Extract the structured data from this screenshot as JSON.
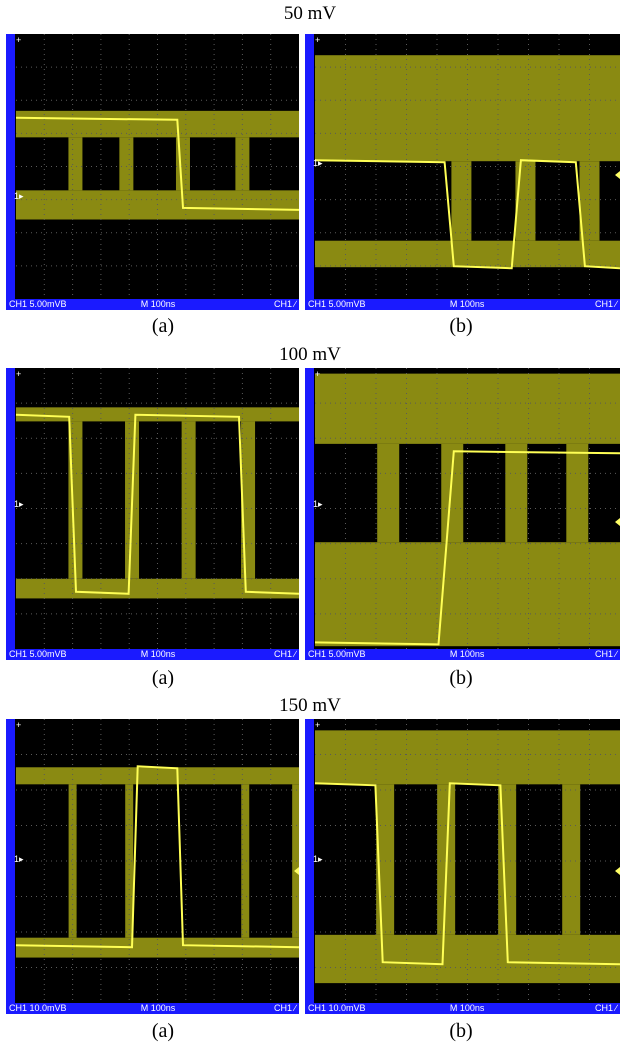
{
  "rows": [
    {
      "title": "50 mV",
      "panels": [
        {
          "caption": "(a)",
          "status": {
            "channel": "CH1  5.00mVB",
            "timebase": "M 100ns",
            "trigger": "CH1 ∕"
          },
          "ground_marker": "1▸"
        },
        {
          "caption": "(b)",
          "status": {
            "channel": "CH1  5.00mVB",
            "timebase": "M 100ns",
            "trigger": "CH1 ∕"
          },
          "ground_marker": "1▸"
        }
      ]
    },
    {
      "title": "100 mV",
      "panels": [
        {
          "caption": "(a)",
          "status": {
            "channel": "CH1  5.00mVB",
            "timebase": "M 100ns",
            "trigger": "CH1 ∕"
          },
          "ground_marker": "1▸"
        },
        {
          "caption": "(b)",
          "status": {
            "channel": "CH1  5.00mVB",
            "timebase": "M 100ns",
            "trigger": "CH1 ∕"
          },
          "ground_marker": "1▸"
        }
      ]
    },
    {
      "title": "150 mV",
      "panels": [
        {
          "caption": "(a)",
          "status": {
            "channel": "CH1  10.0mVB",
            "timebase": "M 100ns",
            "trigger": "CH1 ∕"
          },
          "ground_marker": "1▸"
        },
        {
          "caption": "(b)",
          "status": {
            "channel": "CH1  10.0mVB",
            "timebase": "M 100ns",
            "trigger": "CH1 ∕"
          },
          "ground_marker": "1▸"
        }
      ]
    }
  ],
  "colors": {
    "screen_bg": "#000000",
    "trace_band": "#8a8a12",
    "trace_band_dark": "#6e6e10",
    "trace_bright": "#ffff55",
    "grid": "#5a5a5a",
    "status_bar": "#1a1aff"
  }
}
